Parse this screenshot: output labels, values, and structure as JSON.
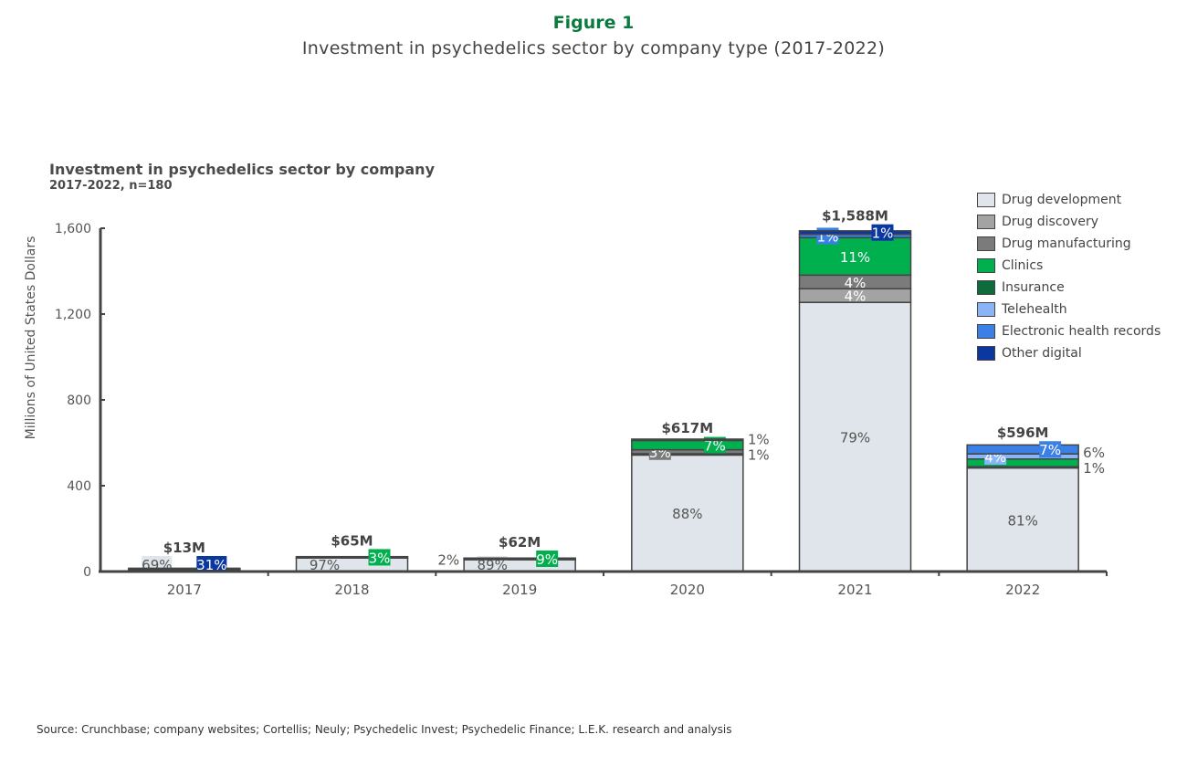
{
  "figure_label": "Figure 1",
  "figure_title": "Investment in psychedelics sector by company type (2017-2022)",
  "source": "Source: Crunchbase; company websites; Cortellis; Neuly; Psychedelic Invest; Psychedelic Finance; L.E.K. research and analysis",
  "chart_data": {
    "type": "bar",
    "stacked": true,
    "title": "Investment in psychedelics sector by company",
    "subtitle": "2017-2022, n=180",
    "ylabel": "Millions of United States Dollars",
    "xlabel": "",
    "ylim": [
      0,
      1600
    ],
    "yticks": [
      0,
      400,
      800,
      1200,
      1600
    ],
    "ytick_labels": [
      "0",
      "400",
      "800",
      "1,200",
      "1,600"
    ],
    "grid": false,
    "legend_position": "top-right",
    "legend": [
      {
        "key": "drug_development",
        "name": "Drug development",
        "color": "#dfe5ea"
      },
      {
        "key": "drug_discovery",
        "name": "Drug discovery",
        "color": "#a3a3a3"
      },
      {
        "key": "drug_manufacturing",
        "name": "Drug manufacturing",
        "color": "#7b7b7b"
      },
      {
        "key": "clinics",
        "name": "Clinics",
        "color": "#00b04f"
      },
      {
        "key": "insurance",
        "name": "Insurance",
        "color": "#0d6b3c"
      },
      {
        "key": "telehealth",
        "name": "Telehealth",
        "color": "#8ab4f5"
      },
      {
        "key": "ehr",
        "name": "Electronic health records",
        "color": "#3b80e6"
      },
      {
        "key": "other_digital",
        "name": "Other digital",
        "color": "#0a38a0"
      }
    ],
    "categories": [
      "2017",
      "2018",
      "2019",
      "2020",
      "2021",
      "2022"
    ],
    "bars": [
      {
        "year": "2017",
        "total": 13,
        "total_label": "$13M",
        "segments": [
          {
            "key": "drug_development",
            "pct": 69,
            "label": "69%",
            "label_mode": "box-left"
          },
          {
            "key": "other_digital",
            "pct": 31,
            "label": "31%",
            "label_mode": "box-right"
          }
        ]
      },
      {
        "year": "2018",
        "total": 65,
        "total_label": "$65M",
        "segments": [
          {
            "key": "drug_development",
            "pct": 97,
            "label": "97%",
            "label_mode": "box-left"
          },
          {
            "key": "clinics",
            "pct": 3,
            "label": "3%",
            "label_mode": "box-right"
          }
        ]
      },
      {
        "year": "2019",
        "total": 62,
        "total_label": "$62M",
        "segments": [
          {
            "key": "drug_development",
            "pct": 89,
            "label": "89%",
            "label_mode": "box-left"
          },
          {
            "key": "drug_discovery",
            "pct": 2,
            "label": "2%",
            "label_mode": "outside-left"
          },
          {
            "key": "clinics",
            "pct": 9,
            "label": "9%",
            "label_mode": "box-right"
          }
        ]
      },
      {
        "year": "2020",
        "total": 617,
        "total_label": "$617M",
        "segments": [
          {
            "key": "drug_development",
            "pct": 88,
            "label": "88%",
            "label_mode": "inside"
          },
          {
            "key": "drug_discovery",
            "pct": 1,
            "label": "1%",
            "label_mode": "outside-right"
          },
          {
            "key": "drug_manufacturing",
            "pct": 3,
            "label": "3%",
            "label_mode": "box-left"
          },
          {
            "key": "clinics",
            "pct": 7,
            "label": "7%",
            "label_mode": "box-right"
          },
          {
            "key": "insurance",
            "pct": 1,
            "label": "1%",
            "label_mode": "outside-right"
          }
        ]
      },
      {
        "year": "2021",
        "total": 1588,
        "total_label": "$1,588M",
        "segments": [
          {
            "key": "drug_development",
            "pct": 79,
            "label": "79%",
            "label_mode": "inside"
          },
          {
            "key": "drug_discovery",
            "pct": 4,
            "label": "4%",
            "label_mode": "inside"
          },
          {
            "key": "drug_manufacturing",
            "pct": 4,
            "label": "4%",
            "label_mode": "inside"
          },
          {
            "key": "clinics",
            "pct": 11,
            "label": "11%",
            "label_mode": "inside"
          },
          {
            "key": "ehr",
            "pct": 1,
            "label": "1%",
            "label_mode": "box-left"
          },
          {
            "key": "other_digital",
            "pct": 1,
            "label": "1%",
            "label_mode": "box-right"
          }
        ]
      },
      {
        "year": "2022",
        "total": 596,
        "total_label": "$596M",
        "segments": [
          {
            "key": "drug_development",
            "pct": 81,
            "label": "81%",
            "label_mode": "inside"
          },
          {
            "key": "insurance",
            "pct": 1,
            "label": "1%",
            "label_mode": "outside-right"
          },
          {
            "key": "clinics",
            "pct": 6,
            "label": "6%",
            "label_mode": "outside-right"
          },
          {
            "key": "telehealth",
            "pct": 4,
            "label": "4%",
            "label_mode": "box-left"
          },
          {
            "key": "ehr",
            "pct": 7,
            "label": "7%",
            "label_mode": "box-right"
          }
        ]
      }
    ]
  }
}
